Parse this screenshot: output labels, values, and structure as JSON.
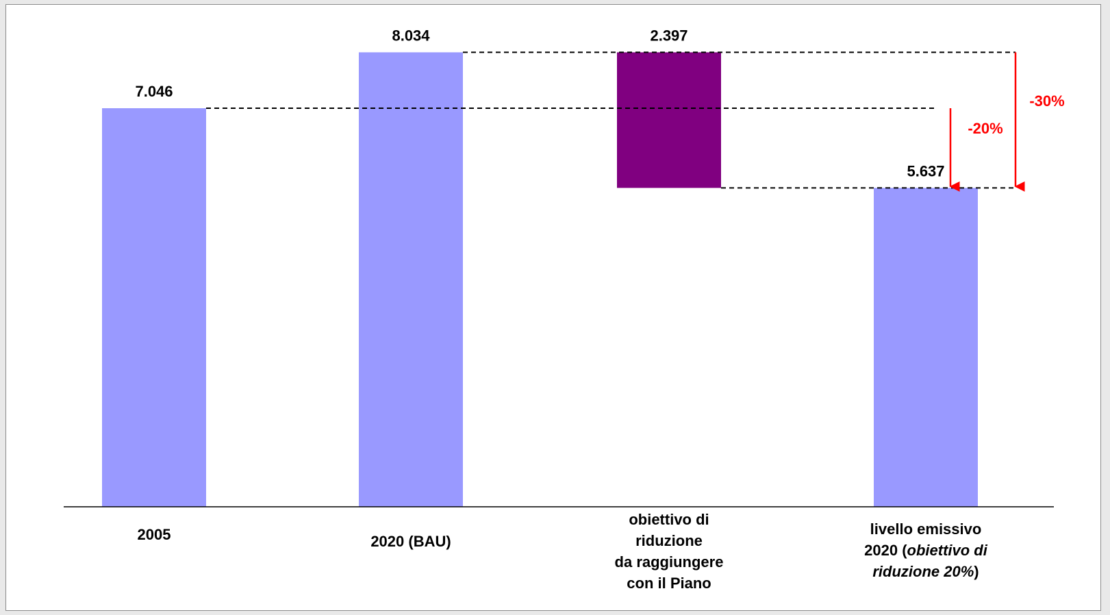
{
  "chart_data": {
    "type": "bar",
    "subtype": "waterfall",
    "categories": [
      "2005",
      "2020 (BAU)",
      "obiettivo di riduzione da raggiungere con il Piano",
      "livello emissivo 2020 (obiettivo di riduzione 20%)"
    ],
    "bars": [
      {
        "category": "2005",
        "base": 0,
        "value": 7046,
        "label": "7.046",
        "color": "#9999ff"
      },
      {
        "category": "2020 (BAU)",
        "base": 0,
        "value": 8034,
        "label": "8.034",
        "color": "#9999ff"
      },
      {
        "category": "obiettivo di riduzione da raggiungere con il Piano",
        "base": 5637,
        "value": 2397,
        "label": "2.397",
        "color": "#800080"
      },
      {
        "category": "livello emissivo 2020 (obiettivo di riduzione 20%)",
        "base": 0,
        "value": 5637,
        "label": "5.637",
        "color": "#9999ff"
      }
    ],
    "ylim": [
      0,
      9000
    ],
    "annotations": [
      {
        "text": "-20%",
        "from": 7046,
        "to": 5637,
        "color": "#ff0000"
      },
      {
        "text": "-30%",
        "from": 8034,
        "to": 5637,
        "color": "#ff0000"
      }
    ],
    "grid": false,
    "legend": "none"
  },
  "category_label_lines": [
    [
      {
        "t": "2005",
        "i": false
      }
    ],
    [
      {
        "t": "2020 (BAU)",
        "i": false
      }
    ],
    [
      {
        "t": "obiettivo di",
        "i": false
      },
      {
        "t": "riduzione",
        "i": false
      },
      {
        "t": "da raggiungere",
        "i": false
      },
      {
        "t": "con il Piano",
        "i": false
      }
    ],
    [
      {
        "t": "livello emissivo",
        "i": false
      },
      {
        "t": "2020 (",
        "i": false,
        "cont": false
      },
      {
        "t": "obiettivo di",
        "i": true,
        "cont": true
      },
      {
        "t": "riduzione 20%",
        "i": true
      },
      {
        "t": ")",
        "i": false,
        "cont": true
      }
    ]
  ]
}
